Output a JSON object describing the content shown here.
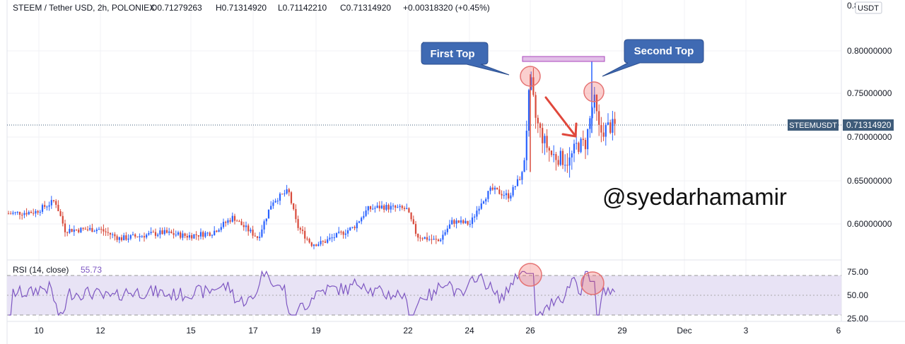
{
  "header": {
    "symbol": "STEEM / Tether USD, 2h, POLONIEX",
    "o": "O0.71279263",
    "h": "H0.71314920",
    "l": "L0.71142210",
    "c": "C0.71314920",
    "chg": "+0.00318320 (+0.45%)"
  },
  "price_scale": {
    "currency": "USDT",
    "top_partial": "0.8",
    "ticks": [
      "0.80000000",
      "0.75000000",
      "0.70000000",
      "0.65000000",
      "0.60000000"
    ],
    "last_tag": "STEEMUSDT",
    "last_value": "0.71314920"
  },
  "rsi": {
    "label": "RSI (14, close)",
    "value": "55.73",
    "ticks": [
      "75.00",
      "50.00",
      "25.00"
    ]
  },
  "time_ticks": [
    "10",
    "12",
    "15",
    "17",
    "19",
    "22",
    "24",
    "26",
    "29",
    "Dec",
    "3",
    "6"
  ],
  "annotations": {
    "first_top": "First Top",
    "second_top": "Second Top",
    "watermark": "@syedarhamamir"
  },
  "colors": {
    "up": "#2962ff",
    "down": "#d84a3b",
    "rsi_line": "#7e57c2",
    "rsi_band": "#e8e3f5",
    "callout": "#3f6ab3",
    "arrow": "#e0473b",
    "bracket": "#ce93d8"
  },
  "chart_data": {
    "type": "candlestick",
    "x": [
      "Nov 10",
      "Nov 12",
      "Nov 15",
      "Nov 17",
      "Nov 19",
      "Nov 22",
      "Nov 24",
      "Nov 26",
      "Nov 29"
    ],
    "close": [
      0.613,
      0.592,
      0.595,
      0.612,
      0.575,
      0.607,
      0.625,
      0.768,
      0.713
    ],
    "ylim": [
      0.56,
      0.81
    ],
    "rsi": {
      "values": [
        52,
        47,
        55,
        60,
        40,
        50,
        62,
        72,
        56
      ],
      "ylim": [
        20,
        80
      ],
      "bands": [
        30,
        70
      ]
    },
    "last_price": 0.7131492
  }
}
